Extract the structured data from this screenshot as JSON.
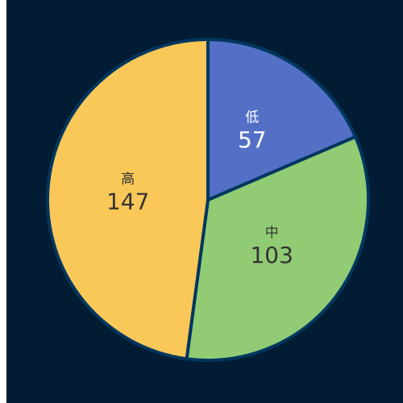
{
  "chart_data": {
    "type": "pie",
    "categories": [
      "低",
      "中",
      "高"
    ],
    "values": [
      57,
      103,
      147
    ],
    "colors": [
      "#5470c6",
      "#91cc75",
      "#fac858"
    ],
    "label_colors": [
      "#ffffff",
      "#333333",
      "#333333"
    ],
    "background": "#011c33",
    "border_color": "#01375f",
    "start_angle_deg": 90,
    "direction": "clockwise",
    "title": "",
    "legend": "none"
  }
}
